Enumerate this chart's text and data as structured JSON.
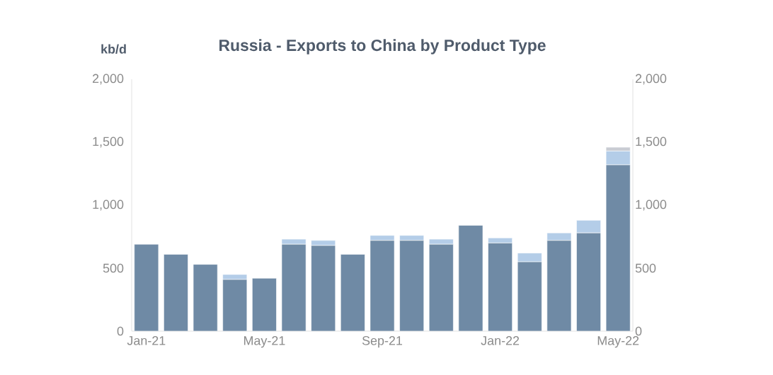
{
  "chart_data": {
    "type": "bar",
    "title": "Russia - Exports to China by Product Type",
    "ylabel": "kb/d",
    "categories": [
      "Jan-21",
      null,
      null,
      null,
      "May-21",
      null,
      null,
      null,
      "Sep-21",
      null,
      null,
      null,
      "Jan-22",
      null,
      null,
      null,
      "May-22"
    ],
    "stacked": true,
    "series": [
      {
        "color": "#6f8aa5",
        "values": [
          690,
          610,
          530,
          410,
          420,
          690,
          680,
          610,
          720,
          720,
          690,
          840,
          700,
          550,
          720,
          780,
          1320
        ]
      },
      {
        "color": "#b4cde8",
        "values": [
          0,
          0,
          0,
          40,
          0,
          40,
          40,
          0,
          40,
          40,
          40,
          0,
          40,
          70,
          60,
          100,
          110
        ]
      },
      {
        "color": "#c9ccd3",
        "values": [
          0,
          0,
          0,
          0,
          0,
          0,
          0,
          0,
          0,
          0,
          0,
          0,
          0,
          0,
          0,
          0,
          30
        ]
      }
    ],
    "ylim": [
      0,
      2000
    ],
    "yticks": [
      0,
      500,
      {
        "value": 1000,
        "label": "1,000"
      },
      {
        "value": 1500,
        "label": "1,500"
      },
      {
        "value": 2000,
        "label": "2,000"
      }
    ],
    "y2lim": [
      0,
      2000
    ],
    "y2ticks": [
      0,
      500,
      {
        "value": 1000,
        "label": "1,000"
      },
      {
        "value": 1500,
        "label": "1,500"
      },
      {
        "value": 2000,
        "label": "2,000"
      }
    ],
    "grid": false
  }
}
